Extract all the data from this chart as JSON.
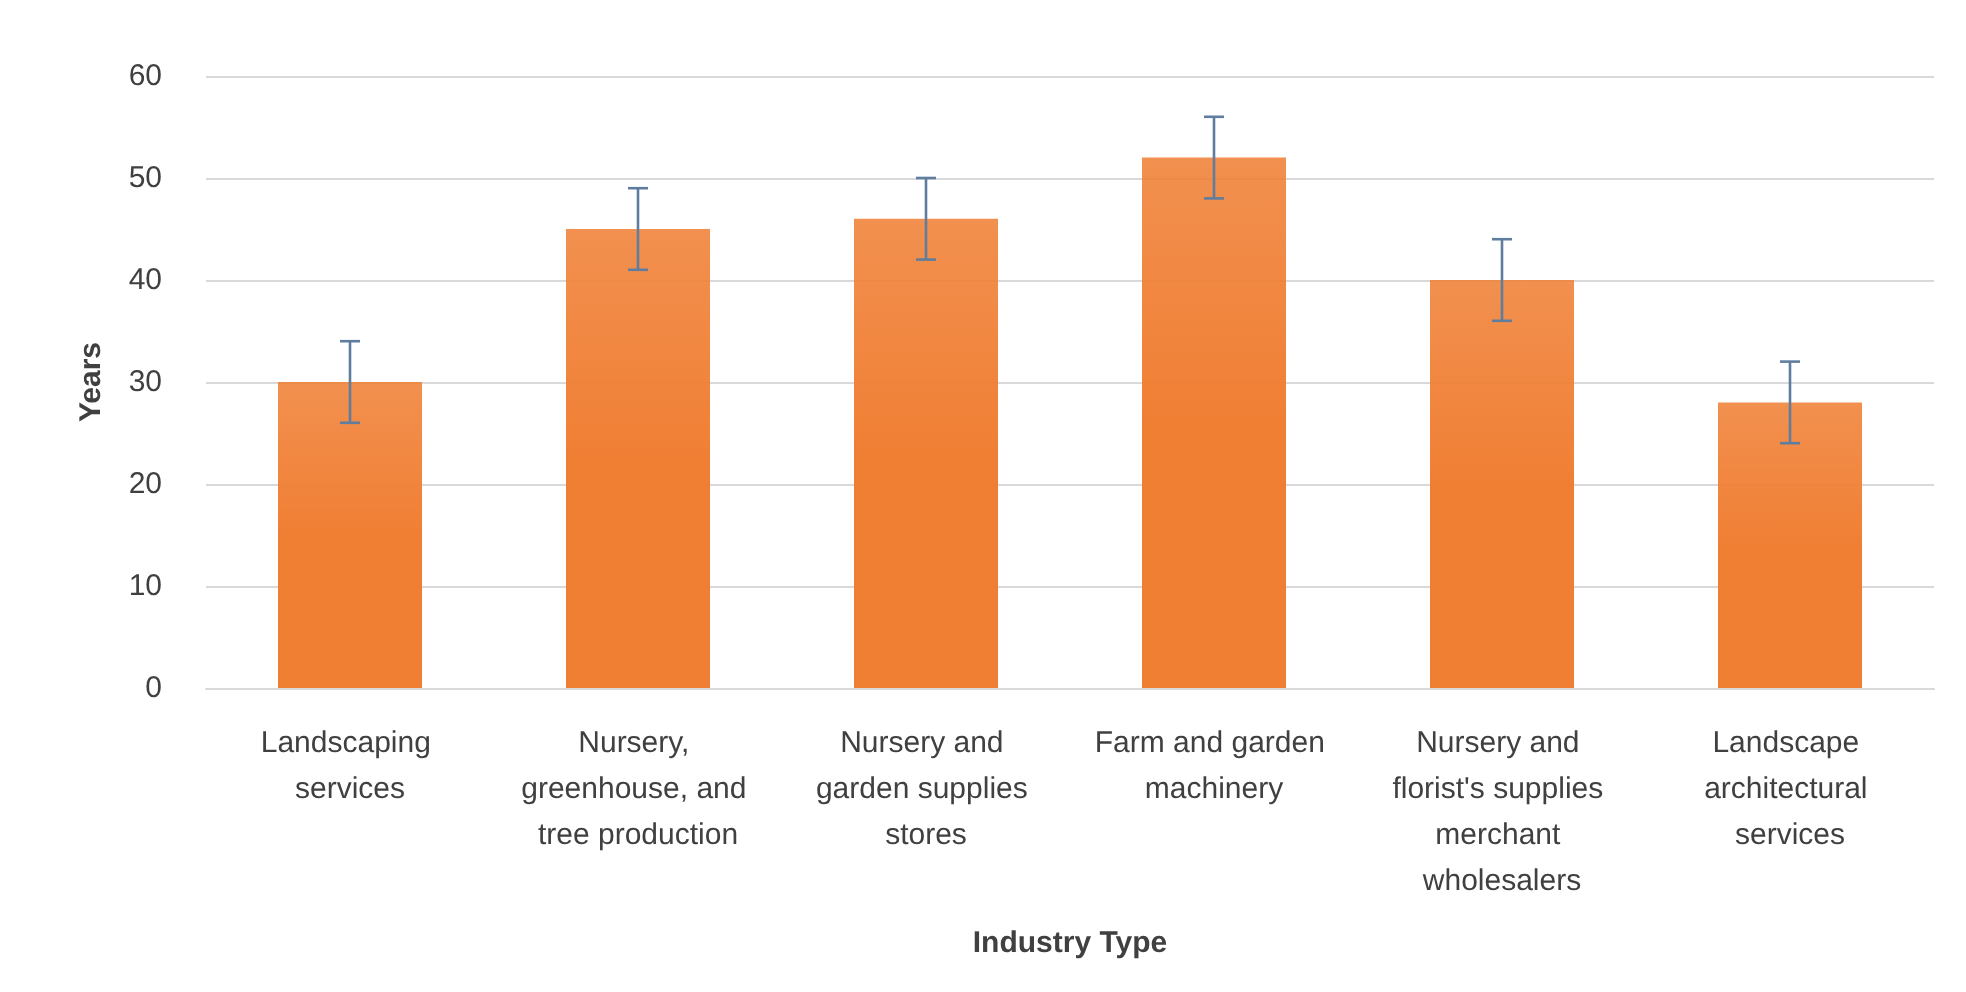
{
  "chart_data": {
    "type": "bar",
    "categories": [
      "Landscaping services",
      "Nursery, greenhouse, and tree production",
      "Nursery and garden supplies stores",
      "Farm and garden machinery",
      "Nursery and florist's supplies merchant wholesalers",
      "Landscape architectural services"
    ],
    "values": [
      30,
      45,
      46,
      52,
      40,
      28
    ],
    "errors": [
      4,
      4,
      4,
      4,
      4,
      4
    ],
    "color": "#f07f34",
    "xlabel": "Industry Type",
    "ylabel": "Years",
    "ylim": [
      0,
      60
    ],
    "yticks": [
      0,
      10,
      20,
      30,
      40,
      50,
      60
    ],
    "grid": "y"
  }
}
